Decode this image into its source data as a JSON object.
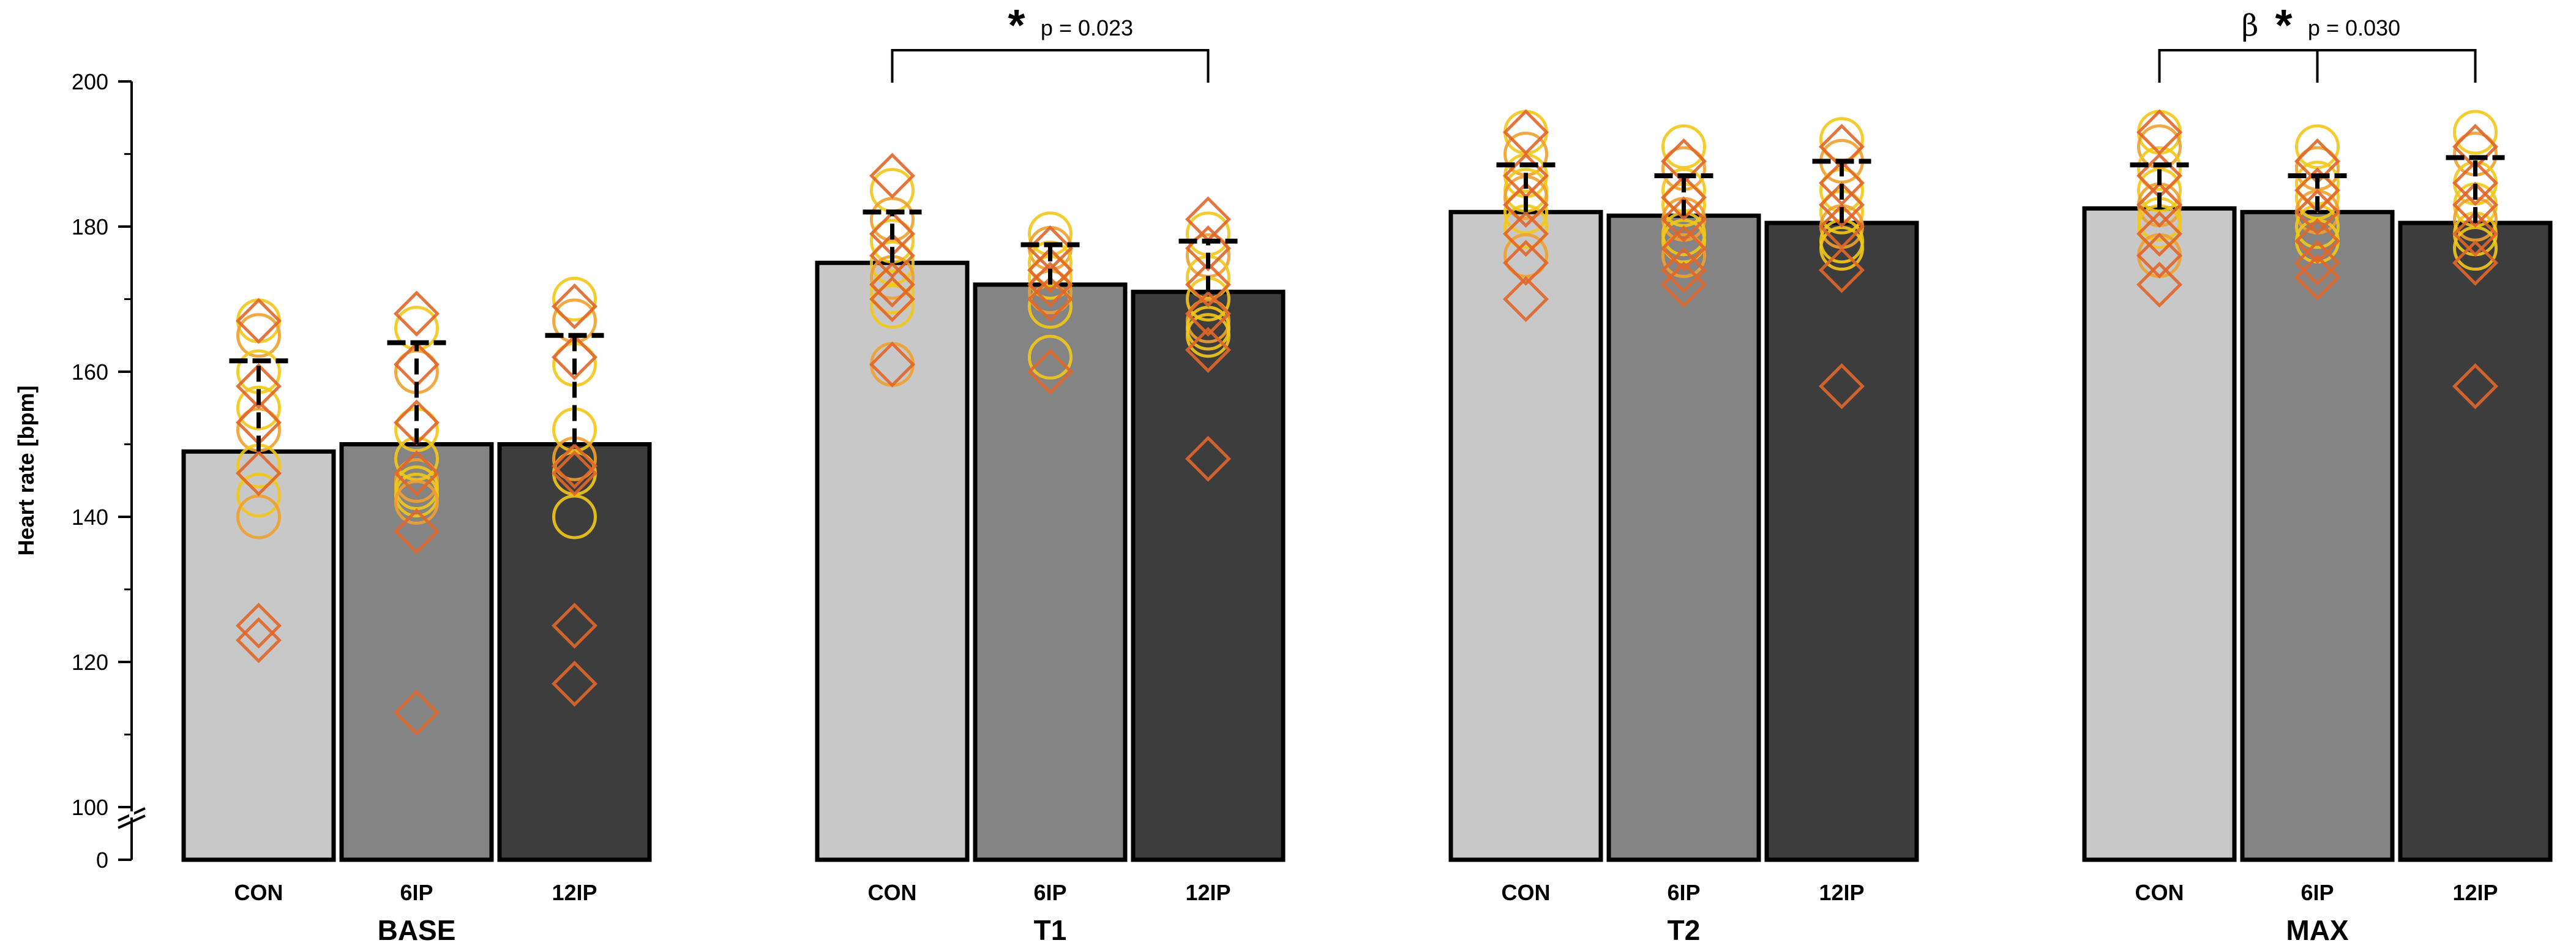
{
  "chart_data": {
    "type": "bar",
    "title": "",
    "ylabel": "Heart rate [bpm]",
    "xlabel": "",
    "ylim": [
      100,
      200
    ],
    "y_axis_break": true,
    "y_ticks": [
      100,
      120,
      140,
      160,
      180,
      200
    ],
    "y_zero_label": "0",
    "groups": [
      {
        "name": "BASE",
        "bars": [
          {
            "label": "CON",
            "value": 149,
            "sd": 12.5,
            "color": "#c8c8c8",
            "circles": [
              167,
              165,
              160,
              155,
              152,
              147,
              143,
              140
            ],
            "diamonds": [
              167,
              158,
              153,
              146,
              125,
              123
            ]
          },
          {
            "label": "6IP",
            "value": 150,
            "sd": 14,
            "color": "#848484",
            "circles": [
              166,
              160,
              152,
              148,
              145,
              144,
              143,
              142
            ],
            "diamonds": [
              168,
              161,
              153,
              146,
              138,
              113
            ]
          },
          {
            "label": "12IP",
            "value": 150,
            "sd": 15,
            "color": "#3d3d3d",
            "circles": [
              170,
              167,
              161,
              152,
              148,
              146,
              140
            ],
            "diamonds": [
              169,
              162,
              147,
              146,
              125,
              117
            ]
          }
        ]
      },
      {
        "name": "T1",
        "bars": [
          {
            "label": "CON",
            "value": 175,
            "sd": 7,
            "color": "#c8c8c8",
            "circles": [
              185,
              181,
              178,
              175,
              173,
              171,
              169,
              161
            ],
            "diamonds": [
              187,
              179,
              176,
              172,
              170,
              161
            ]
          },
          {
            "label": "6IP",
            "value": 172,
            "sd": 5.5,
            "color": "#848484",
            "circles": [
              179,
              177,
              175,
              173,
              171,
              169,
              162
            ],
            "diamonds": [
              177,
              174,
              172,
              170,
              160
            ]
          },
          {
            "label": "12IP",
            "value": 171,
            "sd": 7,
            "color": "#3d3d3d",
            "circles": [
              179,
              176,
              173,
              170,
              167,
              166,
              165
            ],
            "diamonds": [
              181,
              177,
              172,
              168,
              163,
              148
            ]
          }
        ]
      },
      {
        "name": "T2",
        "bars": [
          {
            "label": "CON",
            "value": 182,
            "sd": 6.5,
            "color": "#c8c8c8",
            "circles": [
              193,
              190,
              187,
              185,
              184,
              182,
              180,
              176
            ],
            "diamonds": [
              193,
              187,
              183,
              179,
              175,
              170
            ]
          },
          {
            "label": "6IP",
            "value": 181.5,
            "sd": 5.5,
            "color": "#848484",
            "circles": [
              191,
              188,
              185,
              183,
              181,
              179,
              178,
              176
            ],
            "diamonds": [
              189,
              184,
              181,
              177,
              174,
              172
            ]
          },
          {
            "label": "12IP",
            "value": 180.5,
            "sd": 8.5,
            "color": "#3d3d3d",
            "circles": [
              192,
              189,
              185,
              182,
              180,
              178,
              177
            ],
            "diamonds": [
              191,
              186,
              183,
              180,
              174,
              158
            ]
          }
        ]
      },
      {
        "name": "MAX",
        "bars": [
          {
            "label": "CON",
            "value": 182.5,
            "sd": 6,
            "color": "#c8c8c8",
            "circles": [
              193,
              191,
              188,
              185,
              183,
              181,
              180,
              176
            ],
            "diamonds": [
              193,
              187,
              183,
              179,
              176,
              172
            ]
          },
          {
            "label": "6IP",
            "value": 182,
            "sd": 5,
            "color": "#848484",
            "circles": [
              191,
              188,
              186,
              184,
              182,
              180,
              178
            ],
            "diamonds": [
              189,
              185,
              182,
              178,
              175,
              173
            ]
          },
          {
            "label": "12IP",
            "value": 180.5,
            "sd": 9,
            "color": "#3d3d3d",
            "circles": [
              193,
              190,
              186,
              183,
              181,
              179,
              177
            ],
            "diamonds": [
              191,
              186,
              183,
              179,
              175,
              158
            ]
          }
        ]
      }
    ],
    "annotations": [
      {
        "group": "T1",
        "from": "CON",
        "to": "12IP",
        "star": "*",
        "text": "p = 0.023",
        "beta": ""
      },
      {
        "group": "MAX",
        "from": "CON",
        "to": "12IP",
        "mid": "6IP",
        "star": "*",
        "text": "p = 0.030",
        "beta": "β"
      }
    ],
    "marker_colors": {
      "circle": "#f2c81a",
      "diamond": "#e0662a",
      "circle_alt": "#f0a030"
    }
  }
}
